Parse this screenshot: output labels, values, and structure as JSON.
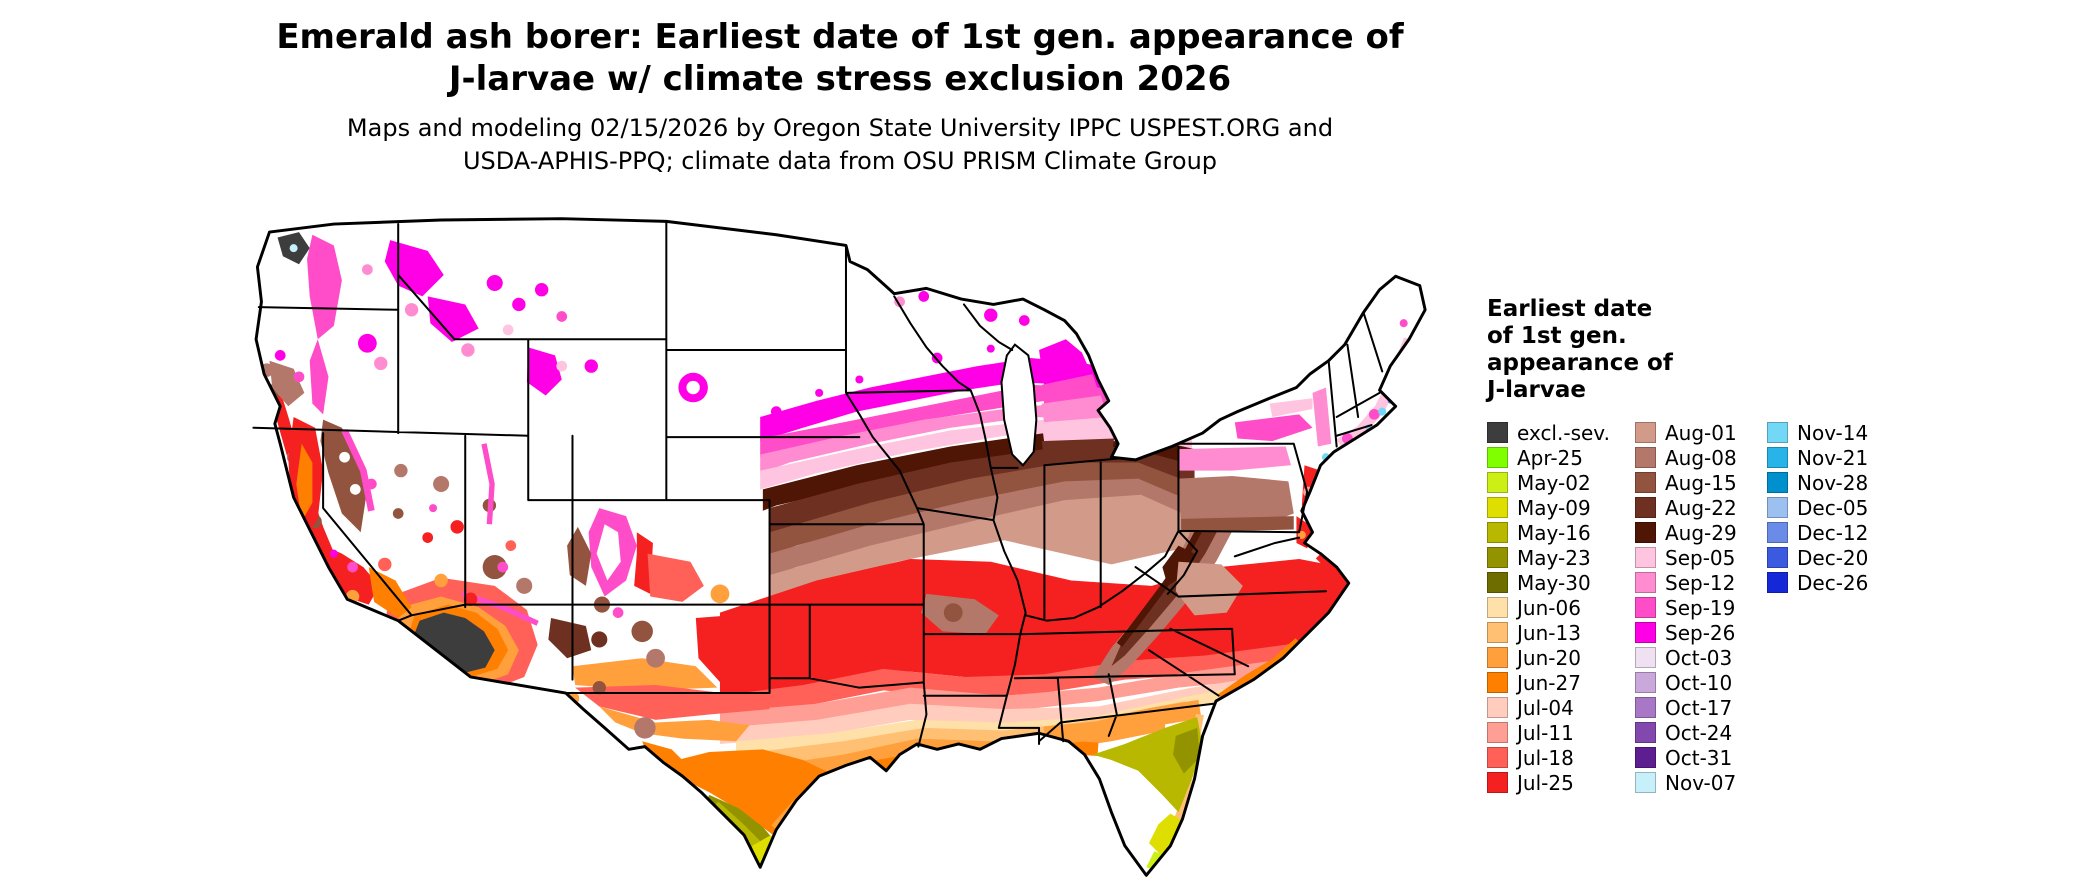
{
  "title": {
    "line1": "Emerald ash borer: Earliest date of 1st gen. appearance of",
    "line2": "J-larvae w/ climate stress exclusion 2026"
  },
  "subtitle": {
    "line1": "Maps and modeling 02/15/2026 by Oregon State University IPPC USPEST.ORG and",
    "line2": "USDA-APHIS-PPQ; climate data from OSU PRISM Climate Group"
  },
  "legend": {
    "title_lines": [
      "Earliest date",
      "of 1st gen.",
      "appearance of",
      "J-larvae"
    ],
    "columns": [
      [
        {
          "key": "excl",
          "label": "excl.-sev.",
          "color": "#3d3d3d"
        },
        {
          "key": "apr25",
          "label": "Apr-25",
          "color": "#80ff00"
        },
        {
          "key": "may02",
          "label": "May-02",
          "color": "#ccf016"
        },
        {
          "key": "may09",
          "label": "May-09",
          "color": "#dede00"
        },
        {
          "key": "may16",
          "label": "May-16",
          "color": "#b8b800"
        },
        {
          "key": "may23",
          "label": "May-23",
          "color": "#939300"
        },
        {
          "key": "may30",
          "label": "May-30",
          "color": "#6e6e00"
        },
        {
          "key": "jun06",
          "label": "Jun-06",
          "color": "#ffe0a8"
        },
        {
          "key": "jun13",
          "label": "Jun-13",
          "color": "#ffc073"
        },
        {
          "key": "jun20",
          "label": "Jun-20",
          "color": "#ffa03c"
        },
        {
          "key": "jun27",
          "label": "Jun-27",
          "color": "#ff8000"
        },
        {
          "key": "jul04",
          "label": "Jul-04",
          "color": "#ffccbe"
        },
        {
          "key": "jul11",
          "label": "Jul-11",
          "color": "#ff9e94"
        },
        {
          "key": "jul18",
          "label": "Jul-18",
          "color": "#ff6057"
        },
        {
          "key": "jul25",
          "label": "Jul-25",
          "color": "#f52020"
        }
      ],
      [
        {
          "key": "aug01",
          "label": "Aug-01",
          "color": "#d29a88"
        },
        {
          "key": "aug08",
          "label": "Aug-08",
          "color": "#b4786a"
        },
        {
          "key": "aug15",
          "label": "Aug-15",
          "color": "#92543f"
        },
        {
          "key": "aug22",
          "label": "Aug-22",
          "color": "#6e3020"
        },
        {
          "key": "aug29",
          "label": "Aug-29",
          "color": "#4f1505"
        },
        {
          "key": "sep05",
          "label": "Sep-05",
          "color": "#ffc4e0"
        },
        {
          "key": "sep12",
          "label": "Sep-12",
          "color": "#ff8cd0"
        },
        {
          "key": "sep19",
          "label": "Sep-19",
          "color": "#ff4cc8"
        },
        {
          "key": "sep26",
          "label": "Sep-26",
          "color": "#ff00e6"
        },
        {
          "key": "oct03",
          "label": "Oct-03",
          "color": "#efe0f2"
        },
        {
          "key": "oct10",
          "label": "Oct-10",
          "color": "#cba8dc"
        },
        {
          "key": "oct17",
          "label": "Oct-17",
          "color": "#a878c6"
        },
        {
          "key": "oct24",
          "label": "Oct-24",
          "color": "#8348ae"
        },
        {
          "key": "oct31",
          "label": "Oct-31",
          "color": "#5c1e90"
        },
        {
          "key": "nov07",
          "label": "Nov-07",
          "color": "#c8f0fa"
        }
      ],
      [
        {
          "key": "nov14",
          "label": "Nov-14",
          "color": "#72d8f5"
        },
        {
          "key": "nov21",
          "label": "Nov-21",
          "color": "#28b4e8"
        },
        {
          "key": "nov28",
          "label": "Nov-28",
          "color": "#0090ce"
        },
        {
          "key": "dec05",
          "label": "Dec-05",
          "color": "#9cc0f0"
        },
        {
          "key": "dec12",
          "label": "Dec-12",
          "color": "#6a8ce8"
        },
        {
          "key": "dec20",
          "label": "Dec-20",
          "color": "#3a5ae0"
        },
        {
          "key": "dec26",
          "label": "Dec-26",
          "color": "#1428d8"
        }
      ]
    ]
  }
}
